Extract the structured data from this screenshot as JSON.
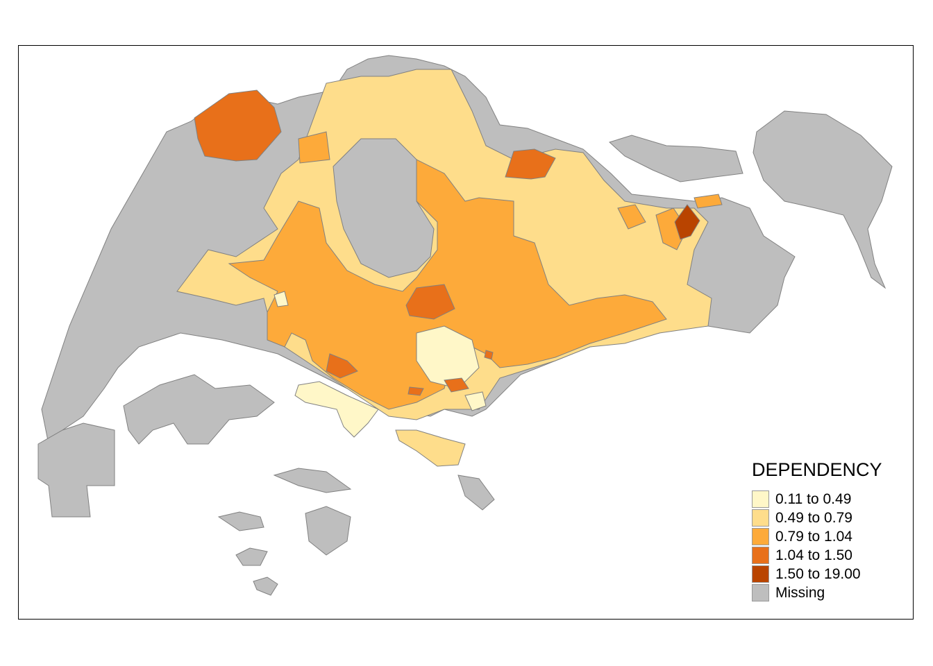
{
  "legend": {
    "title": "DEPENDENCY",
    "classes": [
      {
        "label": "0.11 to 0.49",
        "color": "#FFF7C8"
      },
      {
        "label": "0.49 to 0.79",
        "color": "#FEDD8B"
      },
      {
        "label": "0.79 to 1.04",
        "color": "#FDAA3A"
      },
      {
        "label": "1.04 to 1.50",
        "color": "#E8701A"
      },
      {
        "label": "1.50 to 19.00",
        "color": "#B94400"
      },
      {
        "label": "Missing",
        "color": "#BEBEBE"
      }
    ]
  }
}
